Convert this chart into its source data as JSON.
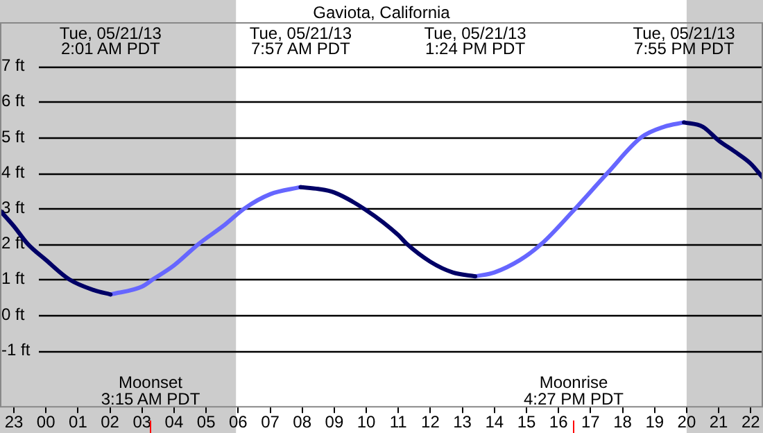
{
  "chart_data": {
    "type": "line",
    "title": "Gaviota, California",
    "xlim": [
      "--05-20T22:34",
      "--05-21T22:23"
    ],
    "xticks": [
      {
        "value": "--05-20T23:00",
        "label": "23"
      },
      {
        "value": "--05-21T00:00",
        "label": "00"
      },
      {
        "value": "--05-21T01:00",
        "label": "01"
      },
      {
        "value": "--05-21T02:00",
        "label": "02"
      },
      {
        "value": "--05-21T03:00",
        "label": "03"
      },
      {
        "value": "--05-21T04:00",
        "label": "04"
      },
      {
        "value": "--05-21T05:00",
        "label": "05"
      },
      {
        "value": "--05-21T06:00",
        "label": "06"
      },
      {
        "value": "--05-21T07:00",
        "label": "07"
      },
      {
        "value": "--05-21T08:00",
        "label": "08"
      },
      {
        "value": "--05-21T09:00",
        "label": "09"
      },
      {
        "value": "--05-21T10:00",
        "label": "10"
      },
      {
        "value": "--05-21T11:00",
        "label": "11"
      },
      {
        "value": "--05-21T12:00",
        "label": "12"
      },
      {
        "value": "--05-21T13:00",
        "label": "13"
      },
      {
        "value": "--05-21T14:00",
        "label": "14"
      },
      {
        "value": "--05-21T15:00",
        "label": "15"
      },
      {
        "value": "--05-21T16:00",
        "label": "16"
      },
      {
        "value": "--05-21T17:00",
        "label": "17"
      },
      {
        "value": "--05-21T18:00",
        "label": "18"
      },
      {
        "value": "--05-21T19:00",
        "label": "19"
      },
      {
        "value": "--05-21T20:00",
        "label": "20"
      },
      {
        "value": "--05-21T21:00",
        "label": "21"
      },
      {
        "value": "--05-21T22:00",
        "label": "22"
      }
    ],
    "ylim": [
      -2.6,
      8.24
    ],
    "yticks": [
      {
        "value": -1,
        "label": "-1 ft"
      },
      {
        "value": 0,
        "label": "0 ft"
      },
      {
        "value": 1,
        "label": "1 ft"
      },
      {
        "value": 2,
        "label": "2 ft"
      },
      {
        "value": 3,
        "label": "3 ft"
      },
      {
        "value": 4,
        "label": "4 ft"
      },
      {
        "value": 5,
        "label": "5 ft"
      },
      {
        "value": 6,
        "label": "6 ft"
      },
      {
        "value": 7,
        "label": "7 ft"
      }
    ],
    "grid": "y",
    "legend": false,
    "marker": "none",
    "line_style": "solid",
    "series": [
      {
        "color": "#000066",
        "x": [
          "--05-20T22:34",
          "--05-20T23:00",
          "--05-20T23:26",
          "--05-21T00:00",
          "--05-21T00:44",
          "--05-21T01:30",
          "--05-21T02:01",
          null,
          "--05-21T07:57",
          "--05-21T08:30",
          "--05-21T09:00",
          "--05-21T10:00",
          "--05-21T11:00",
          "--05-21T11:16",
          "--05-21T12:00",
          "--05-21T12:42",
          "--05-21T13:24",
          null,
          "--05-21T19:55",
          "--05-21T20:30",
          "--05-21T21:00",
          "--05-21T21:30",
          "--05-21T22:00",
          "--05-21T22:23"
        ],
        "values": [
          2.94,
          2.5,
          2.0,
          1.55,
          1.0,
          0.7,
          0.58,
          null,
          3.6,
          3.55,
          3.45,
          2.95,
          2.25,
          2.0,
          1.5,
          1.2,
          1.09,
          null,
          5.42,
          5.3,
          4.91,
          4.6,
          4.26,
          3.86
        ]
      },
      {
        "color": "#6666ff",
        "x": [
          "--05-21T02:01",
          "--05-21T03:00",
          "--05-21T03:20",
          "--05-21T04:00",
          "--05-21T04:46",
          "--05-21T05:35",
          "--05-21T06:12",
          "--05-21T07:00",
          "--05-21T07:57",
          null,
          "--05-21T13:24",
          "--05-21T14:00",
          "--05-21T14:48",
          "--05-21T15:28",
          "--05-21T16:28",
          "--05-21T17:32",
          "--05-21T18:35",
          "--05-21T19:18",
          "--05-21T19:55"
        ],
        "values": [
          0.58,
          0.8,
          1.0,
          1.4,
          2.0,
          2.54,
          3.0,
          3.4,
          3.6,
          null,
          1.09,
          1.2,
          1.55,
          2.0,
          2.94,
          4.0,
          5.0,
          5.3,
          5.42
        ]
      }
    ],
    "bands": [
      {
        "axis": "x",
        "from": "--05-20T22:34",
        "to": "--05-21T05:56",
        "color": "#cccccc"
      },
      {
        "axis": "x",
        "from": "--05-21T20:00",
        "to": "--05-21T22:23",
        "color": "#cccccc"
      }
    ],
    "ref_lines": [
      {
        "axis": "x",
        "value": "--05-21T03:15",
        "label": "Moonset\n3:15 AM PDT",
        "color": "#ff0000"
      },
      {
        "axis": "x",
        "value": "--05-21T16:27",
        "label": "Moonrise\n4:27 PM PDT",
        "color": "#ff0000"
      }
    ],
    "annotations": [
      "Tue, 05/21/13\n2:01 AM PDT",
      "Tue, 05/21/13\n7:57 AM PDT",
      "Tue, 05/21/13\n1:24 PM PDT",
      "Tue, 05/21/13\n7:55 PM PDT"
    ]
  }
}
